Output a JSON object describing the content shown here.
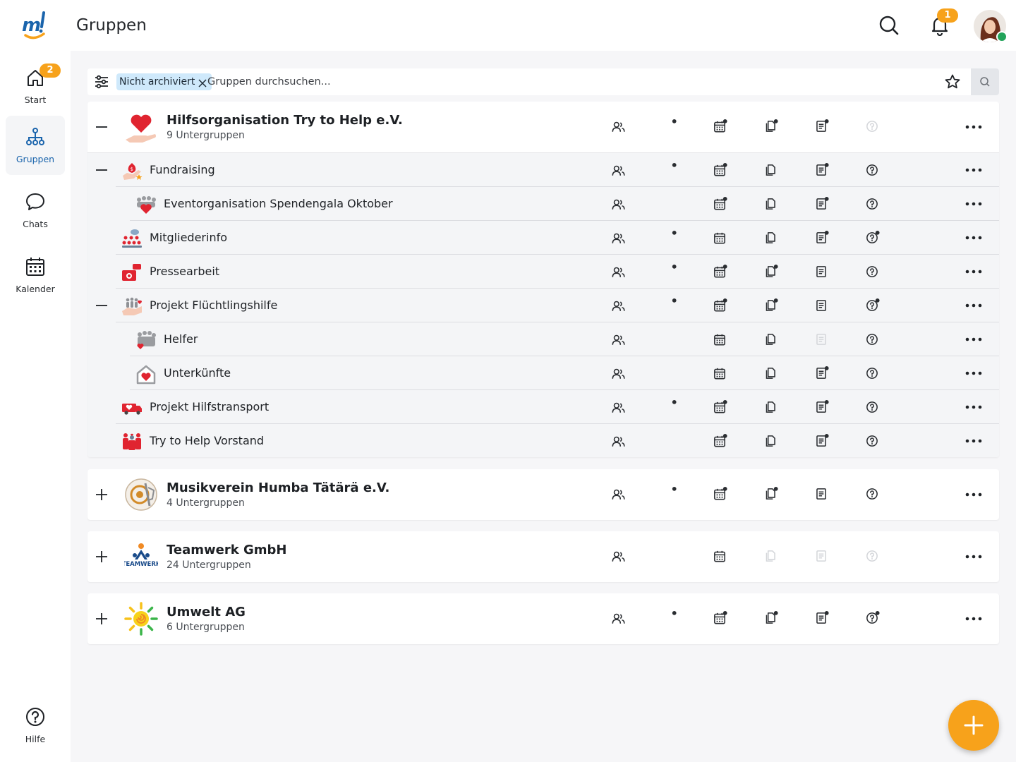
{
  "header": {
    "title": "Gruppen",
    "notification_count": "1"
  },
  "sidebar": {
    "items": [
      {
        "label": "Start",
        "badge": "2",
        "icon": "home-icon"
      },
      {
        "label": "Gruppen",
        "icon": "groups-icon",
        "active": true
      },
      {
        "label": "Chats",
        "icon": "chat-icon"
      },
      {
        "label": "Kalender",
        "icon": "calendar-icon"
      }
    ],
    "help_label": "Hilfe"
  },
  "search": {
    "chip_label": "Nicht archiviert",
    "placeholder": "Gruppen durchsuchen..."
  },
  "colors": {
    "accent": "#f7a21b",
    "primary": "#1a64ac",
    "chip": "#cfe9fb",
    "heart": "#e02430"
  },
  "feature_icons": [
    "members-icon",
    "chat-icon",
    "calendar-icon",
    "files-icon",
    "notes-icon",
    "help-icon"
  ],
  "groups": [
    {
      "name": "Hilfsorganisation Try to Help e.V.",
      "subtitle": "9 Untergruppen",
      "expanded": true,
      "subgroups": [
        {
          "name": "Fundraising"
        },
        {
          "name": "Eventorganisation Spendengala Oktober"
        },
        {
          "name": "Mitgliederinfo"
        },
        {
          "name": "Pressearbeit"
        },
        {
          "name": "Projekt Flüchtlingshilfe"
        },
        {
          "name": "Helfer"
        },
        {
          "name": "Unterkünfte"
        },
        {
          "name": "Projekt Hilfstransport"
        },
        {
          "name": "Try to Help Vorstand"
        }
      ]
    },
    {
      "name": "Musikverein Humba Tätärä e.V.",
      "subtitle": "4 Untergruppen",
      "expanded": false
    },
    {
      "name": "Teamwerk GmbH",
      "subtitle": "24 Untergruppen",
      "expanded": false,
      "logo_text": "TEAMWERK"
    },
    {
      "name": "Umwelt AG",
      "subtitle": "6 Untergruppen",
      "expanded": false
    }
  ]
}
